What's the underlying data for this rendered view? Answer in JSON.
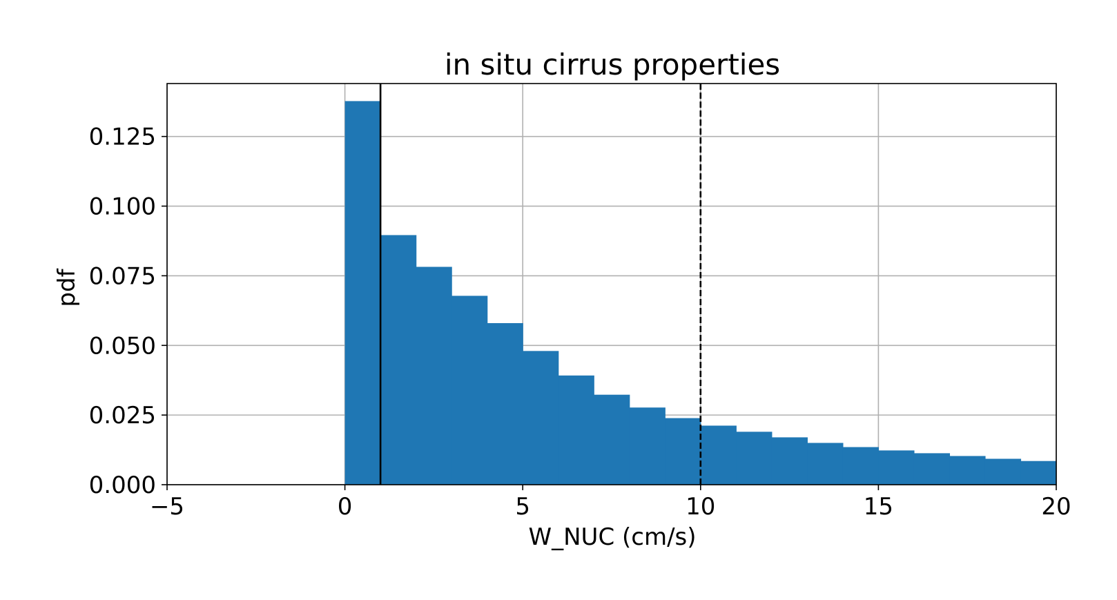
{
  "chart_data": {
    "type": "bar",
    "title": "in situ cirrus properties",
    "xlabel": "W_NUC (cm/s)",
    "ylabel": "pdf",
    "xlim": [
      -5,
      20
    ],
    "ylim": [
      0,
      0.144
    ],
    "grid": true,
    "x_ticks": [
      -5,
      0,
      5,
      10,
      15,
      20
    ],
    "x_tick_labels": [
      "−5",
      "0",
      "5",
      "10",
      "15",
      "20"
    ],
    "y_ticks": [
      0,
      0.025,
      0.05,
      0.075,
      0.1,
      0.125
    ],
    "y_tick_labels": [
      "0.000",
      "0.025",
      "0.050",
      "0.075",
      "0.100",
      "0.125"
    ],
    "bin_width": 1,
    "bin_left_edges": [
      0,
      1,
      2,
      3,
      4,
      5,
      6,
      7,
      8,
      9,
      10,
      11,
      12,
      13,
      14,
      15,
      16,
      17,
      18,
      19
    ],
    "values": [
      0.1377,
      0.0896,
      0.0782,
      0.0678,
      0.058,
      0.048,
      0.0392,
      0.0323,
      0.0277,
      0.0239,
      0.0212,
      0.019,
      0.017,
      0.015,
      0.0135,
      0.0123,
      0.0113,
      0.0103,
      0.0093,
      0.0085
    ],
    "bar_color": "#1f77b4",
    "vertical_lines": [
      {
        "x": 1,
        "style": "solid",
        "color": "#000000"
      },
      {
        "x": 10,
        "style": "dashed",
        "color": "#000000"
      }
    ]
  }
}
